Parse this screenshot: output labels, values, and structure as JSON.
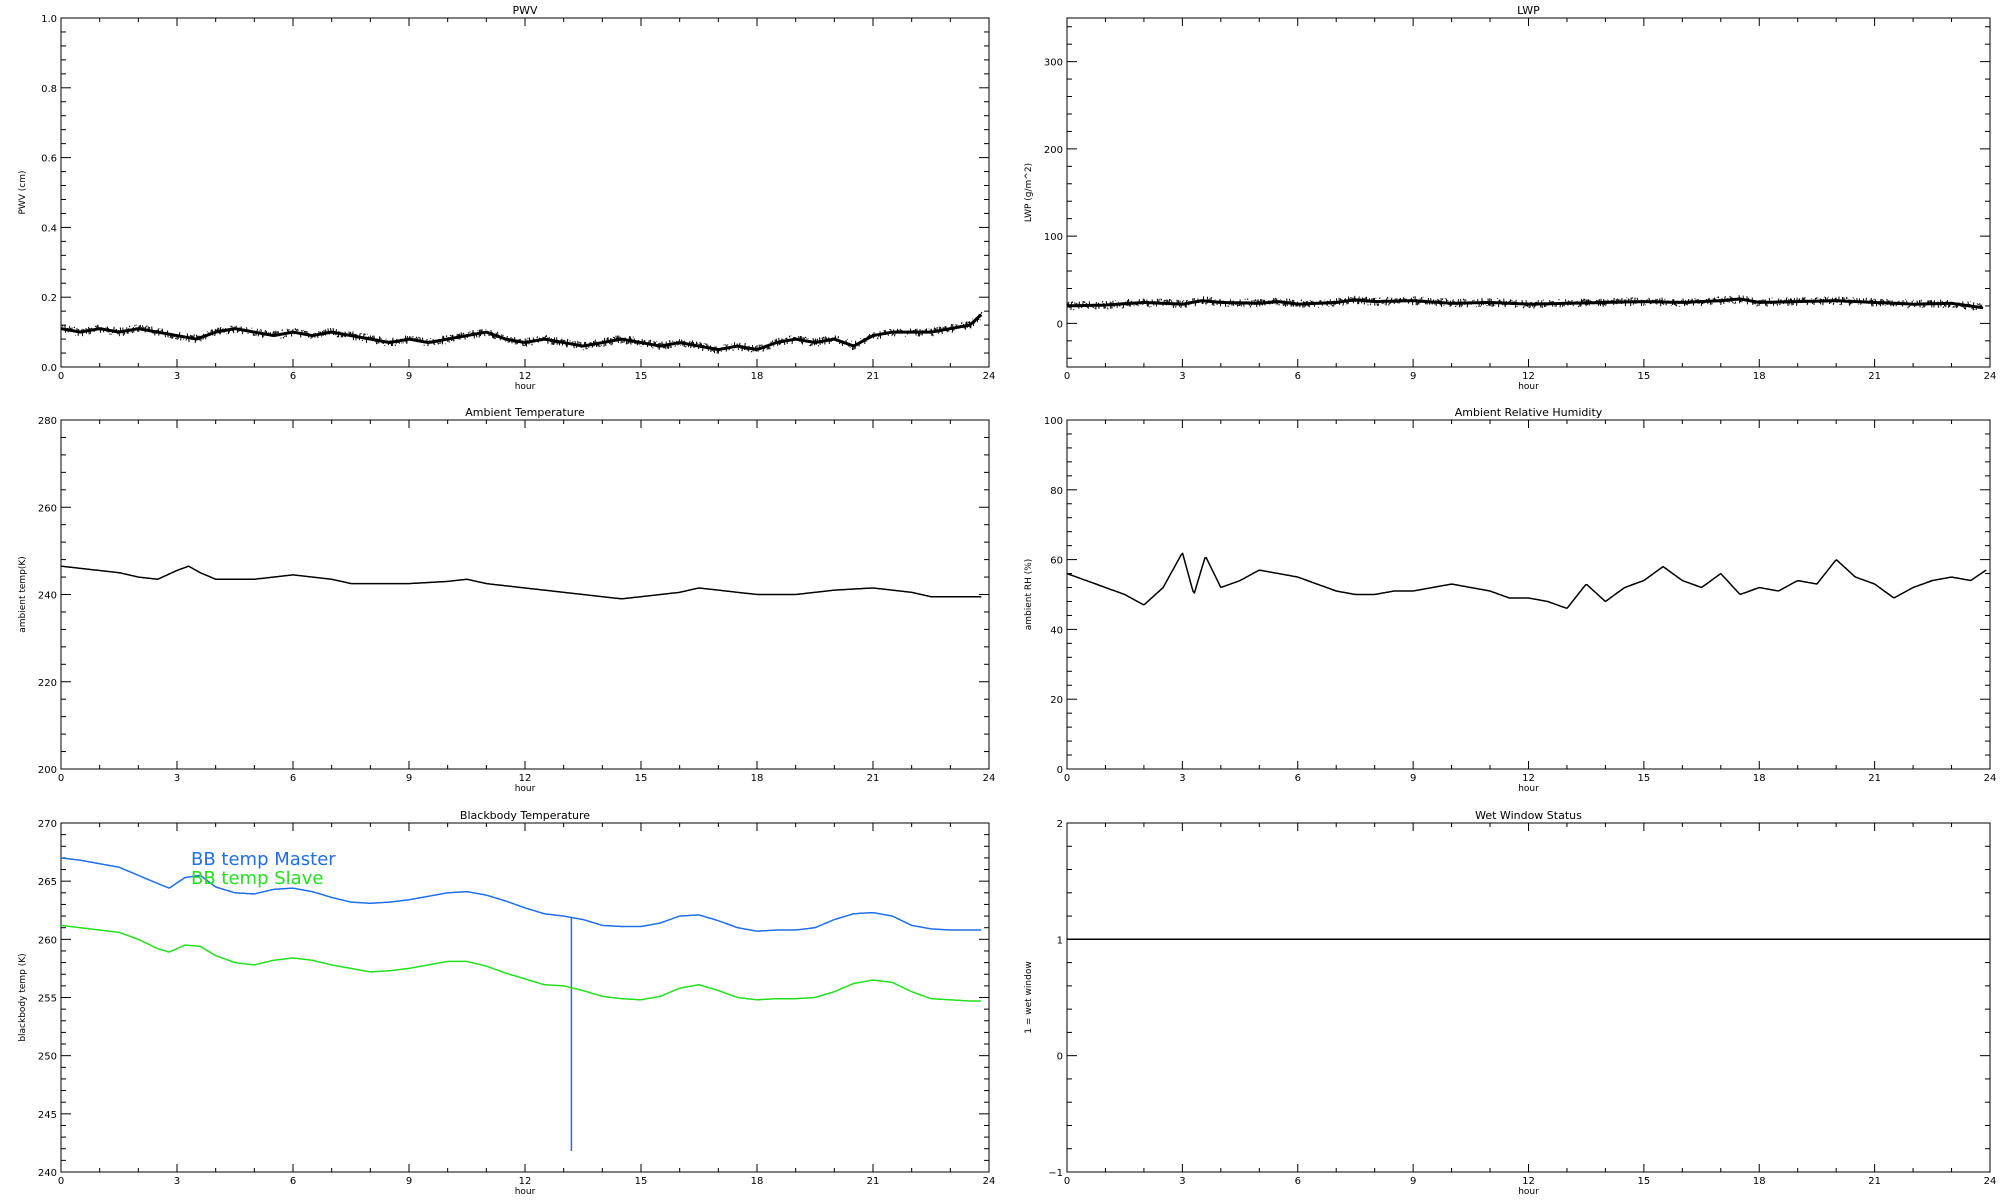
{
  "chart_data": [
    {
      "id": "pwv",
      "type": "line",
      "title": "PWV",
      "xlabel": "hour",
      "ylabel": "PWV (cm)",
      "xlim": [
        0,
        24
      ],
      "ylim": [
        0.0,
        1.0
      ],
      "xticks": [
        "0",
        "3",
        "6",
        "9",
        "12",
        "15",
        "18",
        "21",
        "24"
      ],
      "yticks": [
        "0.0",
        "0.2",
        "0.4",
        "0.6",
        "0.8",
        "1.0"
      ],
      "series": [
        {
          "color": "#000000",
          "noisy": true,
          "x": [
            0,
            0.5,
            1,
            1.5,
            2,
            2.5,
            3,
            3.5,
            4,
            4.5,
            5,
            5.5,
            6,
            6.5,
            7,
            7.5,
            8,
            8.5,
            9,
            9.5,
            10,
            10.5,
            11,
            11.5,
            12,
            12.5,
            13,
            13.5,
            14,
            14.5,
            15,
            15.5,
            16,
            16.5,
            17,
            17.5,
            18,
            18.5,
            19,
            19.5,
            20,
            20.5,
            21,
            21.5,
            22,
            22.5,
            23,
            23.5,
            23.8
          ],
          "y": [
            0.11,
            0.1,
            0.11,
            0.1,
            0.11,
            0.1,
            0.09,
            0.08,
            0.1,
            0.11,
            0.1,
            0.09,
            0.1,
            0.09,
            0.1,
            0.09,
            0.08,
            0.07,
            0.08,
            0.07,
            0.08,
            0.09,
            0.1,
            0.08,
            0.07,
            0.08,
            0.07,
            0.06,
            0.07,
            0.08,
            0.07,
            0.06,
            0.07,
            0.06,
            0.05,
            0.06,
            0.05,
            0.07,
            0.08,
            0.07,
            0.08,
            0.06,
            0.09,
            0.1,
            0.1,
            0.1,
            0.11,
            0.12,
            0.15
          ]
        }
      ]
    },
    {
      "id": "lwp",
      "type": "line",
      "title": "LWP",
      "xlabel": "hour",
      "ylabel": "LWP (g/m^2)",
      "xlim": [
        0,
        24
      ],
      "ylim": [
        -50,
        350
      ],
      "xticks": [
        "0",
        "3",
        "6",
        "9",
        "12",
        "15",
        "18",
        "21",
        "24"
      ],
      "yticks": [
        "0",
        "100",
        "200",
        "300"
      ],
      "series": [
        {
          "color": "#000000",
          "noisy": true,
          "x": [
            0,
            1,
            2,
            3,
            3.5,
            4,
            5,
            5.5,
            6,
            7,
            7.5,
            8,
            9,
            10,
            11,
            12,
            13,
            14,
            15,
            16,
            17,
            17.5,
            18,
            19,
            20,
            21,
            22,
            23,
            23.8
          ],
          "y": [
            20,
            21,
            24,
            22,
            26,
            24,
            23,
            25,
            22,
            24,
            27,
            25,
            26,
            23,
            24,
            22,
            23,
            24,
            25,
            24,
            26,
            28,
            24,
            25,
            26,
            24,
            22,
            23,
            18
          ]
        }
      ]
    },
    {
      "id": "ambient-temp",
      "type": "line",
      "title": "Ambient Temperature",
      "xlabel": "hour",
      "ylabel": "ambient temp(K)",
      "xlim": [
        0,
        24
      ],
      "ylim": [
        200,
        280
      ],
      "xticks": [
        "0",
        "3",
        "6",
        "9",
        "12",
        "15",
        "18",
        "21",
        "24"
      ],
      "yticks": [
        "200",
        "220",
        "240",
        "260",
        "280"
      ],
      "series": [
        {
          "color": "#000000",
          "noisy": false,
          "x": [
            0,
            0.5,
            1,
            1.5,
            2,
            2.5,
            3,
            3.3,
            3.6,
            4,
            5,
            6,
            6.5,
            7,
            7.5,
            8,
            9,
            10,
            10.5,
            11,
            12,
            13,
            14,
            14.5,
            15,
            16,
            16.5,
            17,
            18,
            19,
            20,
            21,
            22,
            22.5,
            23,
            23.8
          ],
          "y": [
            246.5,
            246,
            245.5,
            245,
            244,
            243.5,
            245.5,
            246.5,
            245,
            243.5,
            243.5,
            244.5,
            244,
            243.5,
            242.5,
            242.5,
            242.5,
            243,
            243.5,
            242.5,
            241.5,
            240.5,
            239.5,
            239,
            239.5,
            240.5,
            241.5,
            241,
            240,
            240,
            241,
            241.5,
            240.5,
            239.5,
            239.5,
            239.5
          ]
        }
      ]
    },
    {
      "id": "ambient-rh",
      "type": "line",
      "title": "Ambient Relative Humidity",
      "xlabel": "hour",
      "ylabel": "ambient RH (%)",
      "xlim": [
        0,
        24
      ],
      "ylim": [
        0,
        100
      ],
      "xticks": [
        "0",
        "3",
        "6",
        "9",
        "12",
        "15",
        "18",
        "21",
        "24"
      ],
      "yticks": [
        "0",
        "20",
        "40",
        "60",
        "80",
        "100"
      ],
      "series": [
        {
          "color": "#000000",
          "noisy": false,
          "x": [
            0,
            0.5,
            1,
            1.5,
            2,
            2.5,
            3,
            3.3,
            3.6,
            4,
            4.5,
            5,
            5.5,
            6,
            6.5,
            7,
            7.5,
            8,
            8.5,
            9,
            9.5,
            10,
            10.5,
            11,
            11.5,
            12,
            12.5,
            13,
            13.5,
            14,
            14.5,
            15,
            15.5,
            16,
            16.5,
            17,
            17.5,
            18,
            18.5,
            19,
            19.5,
            20,
            20.5,
            21,
            21.5,
            22,
            22.5,
            23,
            23.5,
            23.9
          ],
          "y": [
            56,
            54,
            52,
            50,
            47,
            52,
            62,
            50,
            61,
            52,
            54,
            57,
            56,
            55,
            53,
            51,
            50,
            50,
            51,
            51,
            52,
            53,
            52,
            51,
            49,
            49,
            48,
            46,
            53,
            48,
            52,
            54,
            58,
            54,
            52,
            56,
            50,
            52,
            51,
            54,
            53,
            60,
            55,
            53,
            49,
            52,
            54,
            55,
            54,
            57
          ]
        }
      ]
    },
    {
      "id": "blackbody-temp",
      "type": "line",
      "title": "Blackbody Temperature",
      "xlabel": "hour",
      "ylabel": "blackbody temp (K)",
      "xlim": [
        0,
        24
      ],
      "ylim": [
        240,
        270
      ],
      "xticks": [
        "0",
        "3",
        "6",
        "9",
        "12",
        "15",
        "18",
        "21",
        "24"
      ],
      "yticks": [
        "240",
        "245",
        "250",
        "255",
        "260",
        "265",
        "270"
      ],
      "legend_position": "top-left",
      "series": [
        {
          "name": "BB temp Master",
          "color": "#1e6fe8",
          "noisy": false,
          "spike": {
            "x": 13.2,
            "y_low": 241.8
          },
          "x": [
            0,
            0.5,
            1,
            1.5,
            2,
            2.5,
            2.8,
            3.2,
            3.6,
            4,
            4.5,
            5,
            5.5,
            6,
            6.5,
            7,
            7.5,
            8,
            8.5,
            9,
            9.5,
            10,
            10.5,
            11,
            11.5,
            12,
            12.5,
            13,
            13.5,
            14,
            14.5,
            15,
            15.5,
            16,
            16.5,
            17,
            17.5,
            18,
            18.5,
            19,
            19.5,
            20,
            20.5,
            21,
            21.5,
            22,
            22.5,
            23,
            23.5,
            23.8
          ],
          "y": [
            267,
            266.8,
            266.5,
            266.2,
            265.5,
            264.8,
            264.4,
            265.3,
            265.5,
            264.5,
            264,
            263.9,
            264.3,
            264.4,
            264.1,
            263.6,
            263.2,
            263.1,
            263.2,
            263.4,
            263.7,
            264,
            264.1,
            263.8,
            263.3,
            262.7,
            262.2,
            262,
            261.7,
            261.2,
            261.1,
            261.1,
            261.4,
            262,
            262.1,
            261.6,
            261,
            260.7,
            260.8,
            260.8,
            261,
            261.7,
            262.2,
            262.3,
            262,
            261.2,
            260.9,
            260.8,
            260.8,
            260.8
          ]
        },
        {
          "name": "BB temp Slave",
          "color": "#22e01e",
          "noisy": false,
          "x": [
            0,
            0.5,
            1,
            1.5,
            2,
            2.5,
            2.8,
            3.2,
            3.6,
            4,
            4.5,
            5,
            5.5,
            6,
            6.5,
            7,
            7.5,
            8,
            8.5,
            9,
            9.5,
            10,
            10.5,
            11,
            11.5,
            12,
            12.5,
            13,
            13.5,
            14,
            14.5,
            15,
            15.5,
            16,
            16.5,
            17,
            17.5,
            18,
            18.5,
            19,
            19.5,
            20,
            20.5,
            21,
            21.5,
            22,
            22.5,
            23,
            23.5,
            23.8
          ],
          "y": [
            261.2,
            261,
            260.8,
            260.6,
            260,
            259.2,
            258.9,
            259.5,
            259.4,
            258.6,
            258,
            257.8,
            258.2,
            258.4,
            258.2,
            257.8,
            257.5,
            257.2,
            257.3,
            257.5,
            257.8,
            258.1,
            258.1,
            257.7,
            257.1,
            256.6,
            256.1,
            256,
            255.6,
            255.1,
            254.9,
            254.8,
            255.1,
            255.8,
            256.1,
            255.6,
            255,
            254.8,
            254.9,
            254.9,
            255,
            255.5,
            256.2,
            256.5,
            256.3,
            255.5,
            254.9,
            254.8,
            254.7,
            254.7
          ]
        }
      ]
    },
    {
      "id": "wet-window",
      "type": "line",
      "title": "Wet Window Status",
      "xlabel": "hour",
      "ylabel": "1 = wet window",
      "xlim": [
        0,
        24
      ],
      "ylim": [
        -1,
        2
      ],
      "xticks": [
        "0",
        "3",
        "6",
        "9",
        "12",
        "15",
        "18",
        "21",
        "24"
      ],
      "yticks": [
        "−1",
        "0",
        "1",
        "2"
      ],
      "series": [
        {
          "color": "#000000",
          "noisy": false,
          "x": [
            0,
            24
          ],
          "y": [
            1,
            1
          ]
        }
      ]
    }
  ]
}
